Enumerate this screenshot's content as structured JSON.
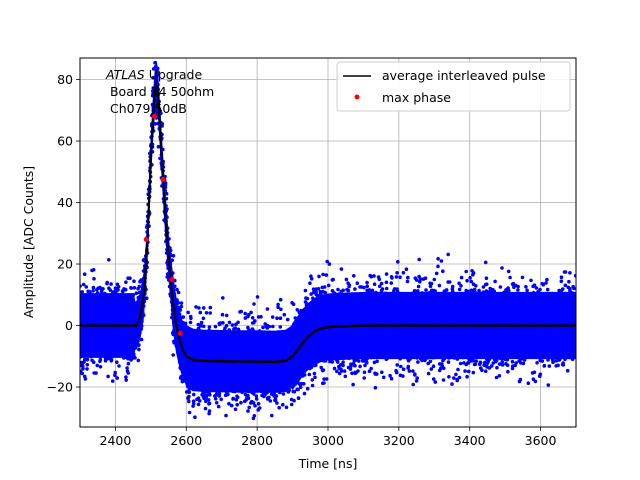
{
  "chart_data": {
    "type": "scatter",
    "xlabel": "Time [ns]",
    "ylabel": "Amplitude [ADC Counts]",
    "xlim": [
      2300,
      3700
    ],
    "ylim": [
      -33,
      87
    ],
    "xticks": [
      2400,
      2600,
      2800,
      3000,
      3200,
      3400,
      3600
    ],
    "yticks": [
      -20,
      0,
      20,
      40,
      60,
      80
    ],
    "grid": true,
    "legend_position": "top-right",
    "annotation": {
      "italic": "ATLAS",
      "rest": " Upgrade",
      "line2": " Board 34 50ohm",
      "line3": " Ch079 50dB"
    },
    "legend": [
      "average interleaved pulse",
      "max phase"
    ],
    "colors": {
      "samples": "#0000ff",
      "average": "#000000",
      "max_phase": "#ff0000"
    },
    "series": [
      {
        "name": "average interleaved pulse",
        "style": "line",
        "x": [
          2300,
          2460,
          2470,
          2480,
          2490,
          2500,
          2510,
          2515,
          2520,
          2530,
          2540,
          2550,
          2560,
          2570,
          2580,
          2590,
          2600,
          2620,
          2650,
          2700,
          2750,
          2800,
          2850,
          2880,
          2900,
          2920,
          2940,
          2960,
          2980,
          3000,
          3050,
          3100,
          3200,
          3300,
          3400,
          3500,
          3600,
          3700
        ],
        "y": [
          0,
          0,
          3,
          10,
          26,
          55,
          75,
          79,
          76,
          56,
          38,
          22,
          10,
          1,
          -4,
          -8,
          -10,
          -11.2,
          -11.5,
          -11.6,
          -11.7,
          -11.7,
          -11.8,
          -11.5,
          -10,
          -7,
          -4,
          -2,
          -1,
          -0.5,
          -0.2,
          0,
          0,
          0,
          0,
          0,
          0,
          0
        ]
      },
      {
        "name": "max phase",
        "style": "points",
        "x": [
          2487,
          2510,
          2534,
          2560,
          2583
        ],
        "y": [
          28,
          68,
          47.5,
          15,
          -2.5
        ]
      }
    ]
  }
}
